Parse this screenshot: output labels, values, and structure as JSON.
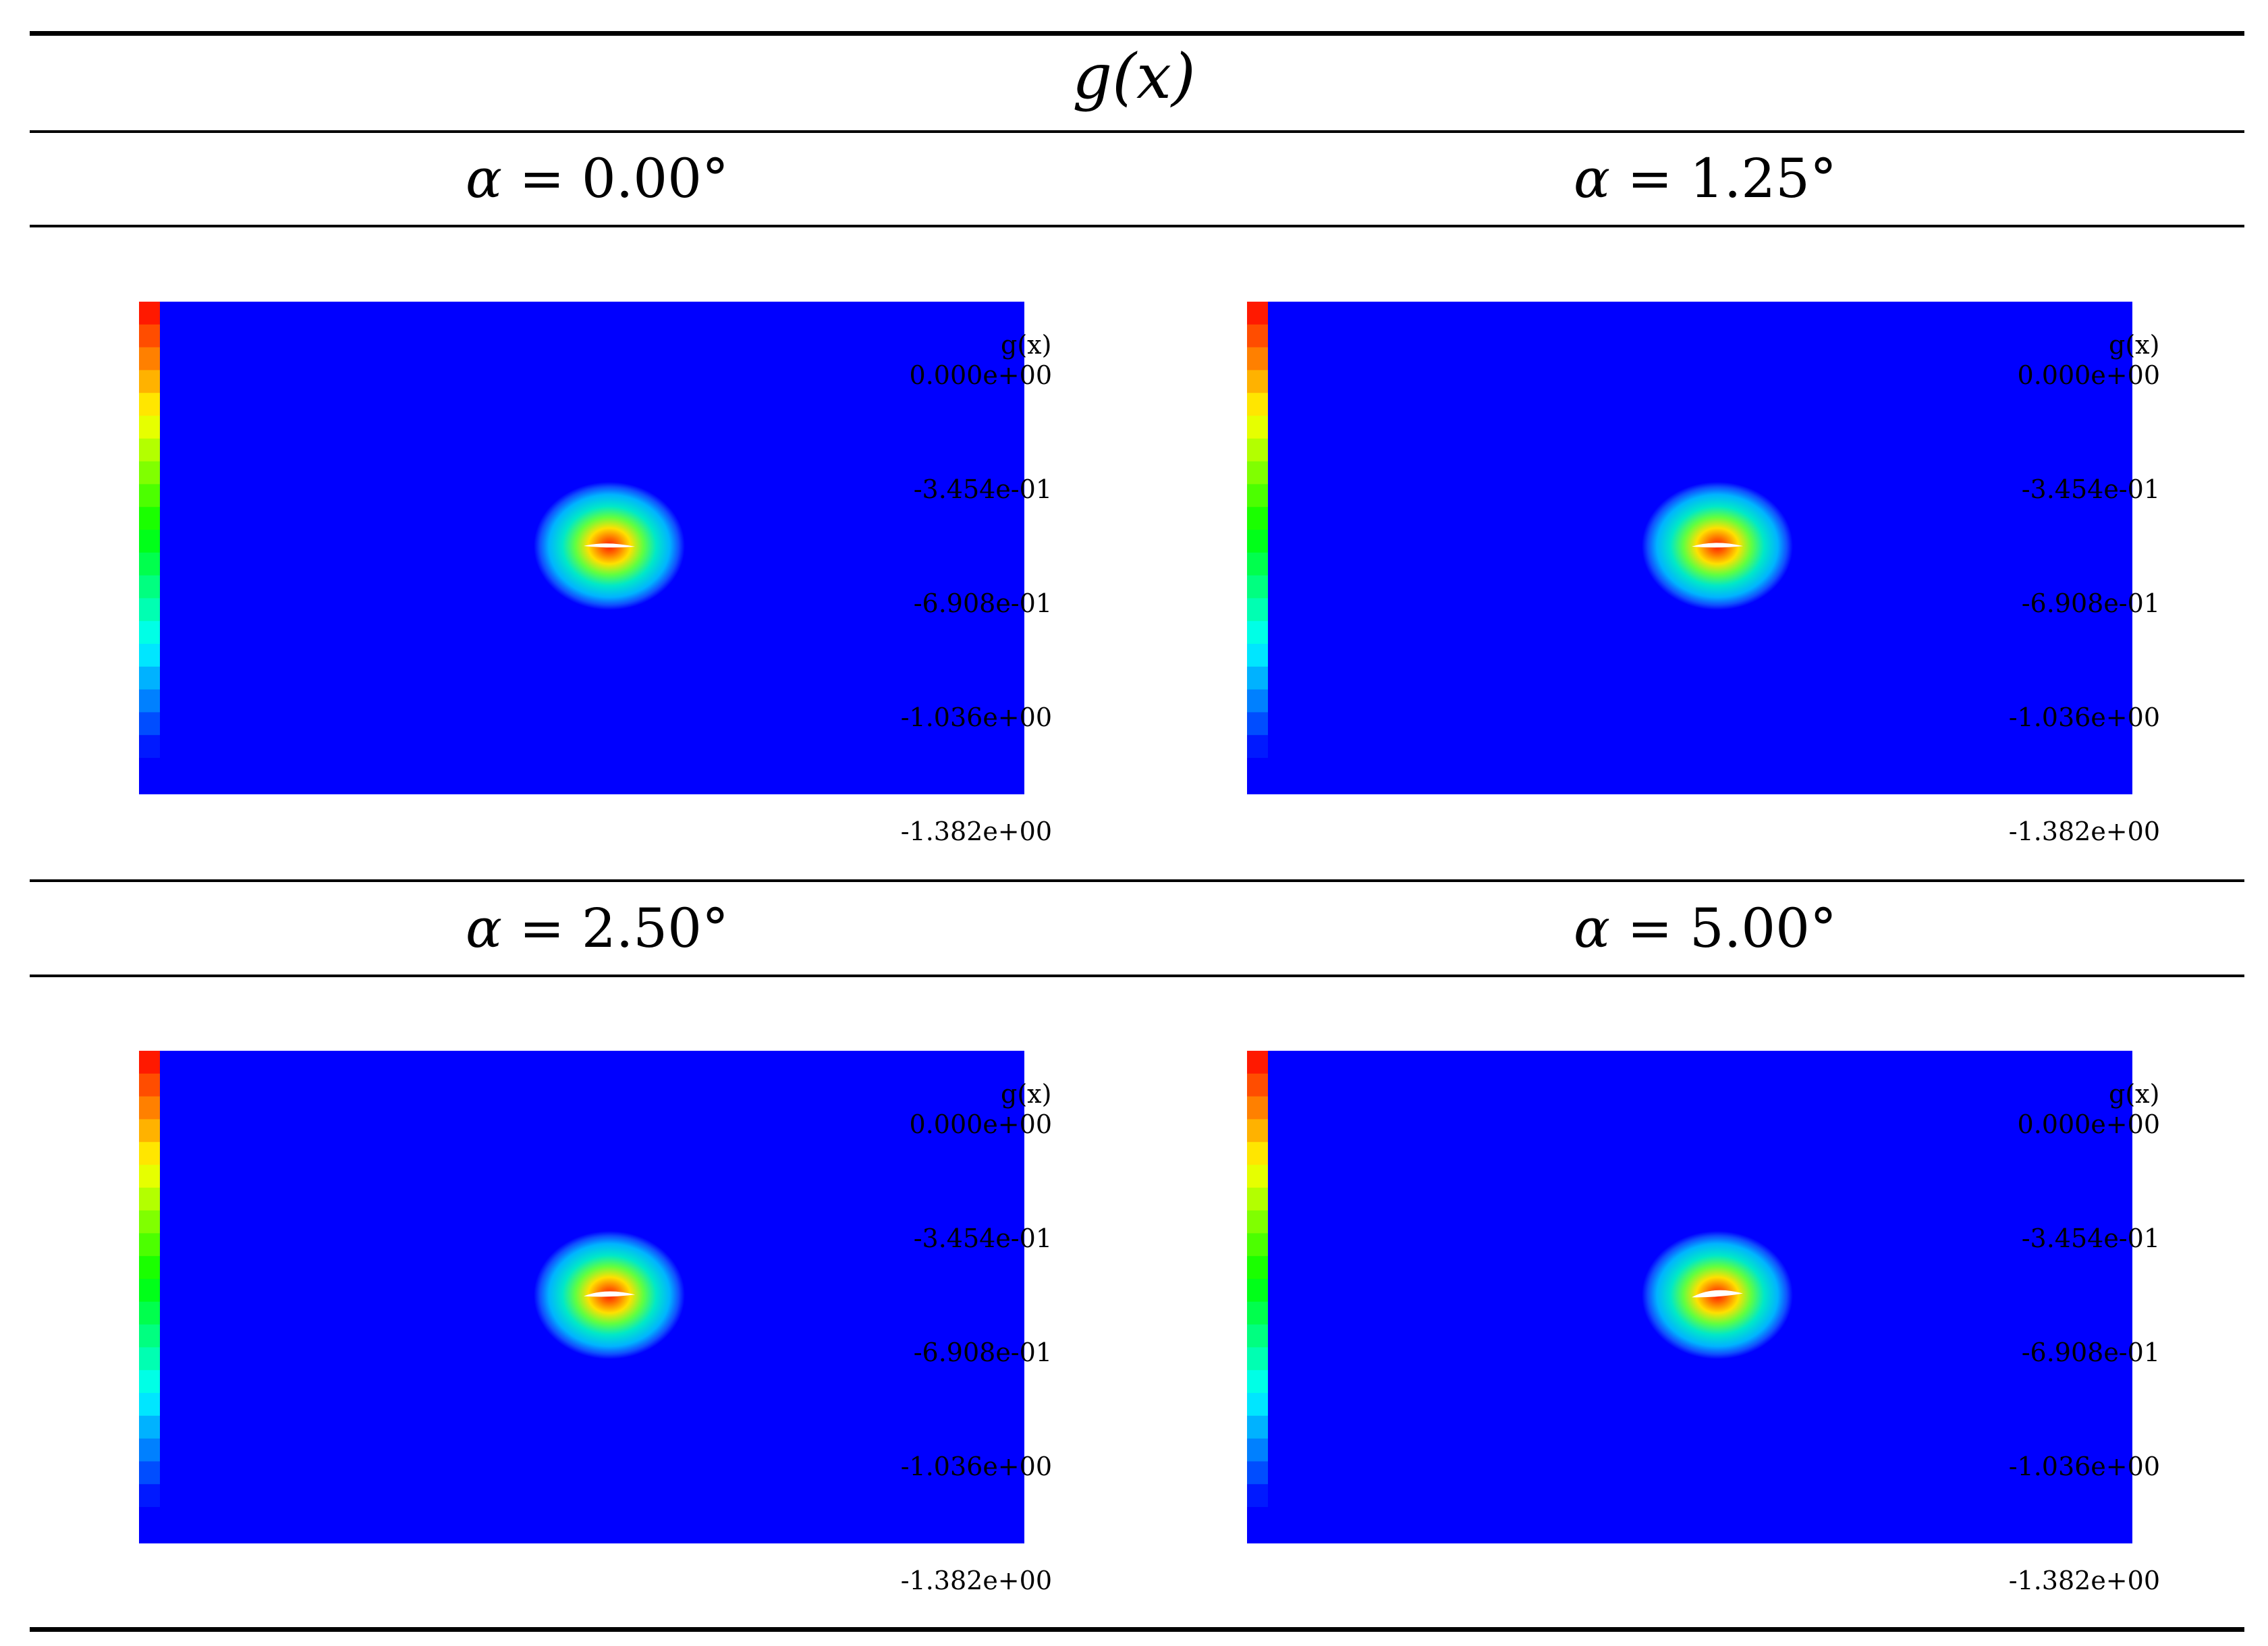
{
  "header": {
    "title": "g(x)"
  },
  "panels": [
    {
      "alpha_symbol": "α",
      "alpha_text": " = 0.00°",
      "slice_angle_deg": 0.0
    },
    {
      "alpha_symbol": "α",
      "alpha_text": " = 1.25°",
      "slice_angle_deg": 1.25
    },
    {
      "alpha_symbol": "α",
      "alpha_text": " = 2.50°",
      "slice_angle_deg": 2.5
    },
    {
      "alpha_symbol": "α",
      "alpha_text": " = 5.00°",
      "slice_angle_deg": 5.0
    }
  ],
  "colorbar": {
    "title": "g(x)",
    "ticks": [
      "0.000e+00",
      "-3.454e-01",
      "-6.908e-01",
      "-1.036e+00",
      "-1.382e+00"
    ],
    "min": -1.382,
    "max": 0.0,
    "levels": 20,
    "colormap": "rainbow"
  },
  "colors": {
    "field_background": "#0000ff",
    "rules": "#000000"
  }
}
